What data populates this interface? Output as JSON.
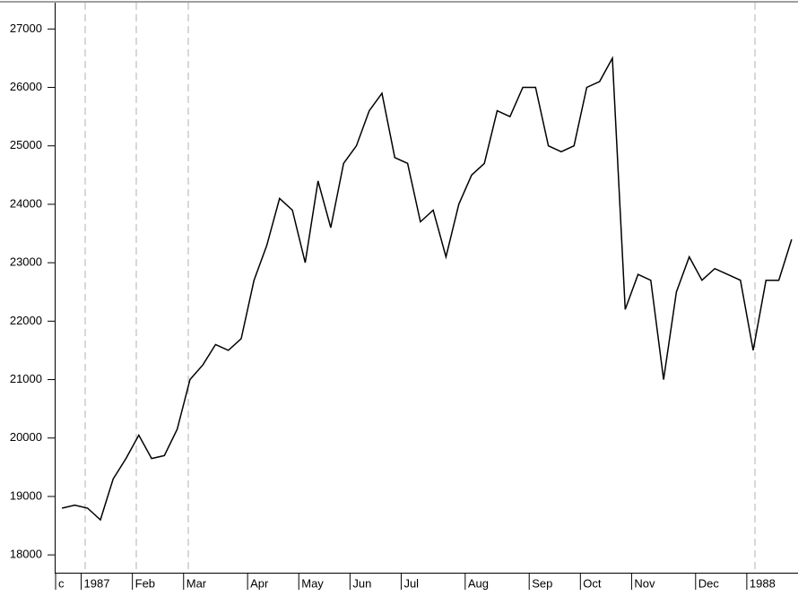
{
  "chart_data": {
    "type": "line",
    "color": "#000000",
    "categories": [
      "c",
      null,
      "1987",
      null,
      null,
      null,
      "Feb",
      null,
      null,
      null,
      "Mar",
      null,
      null,
      null,
      null,
      "Apr",
      null,
      null,
      null,
      "May",
      null,
      null,
      null,
      "Jun",
      null,
      null,
      null,
      "Jul",
      null,
      null,
      null,
      null,
      "Aug",
      null,
      null,
      null,
      null,
      "Sep",
      null,
      null,
      null,
      "Oct",
      null,
      null,
      null,
      "Nov",
      null,
      null,
      null,
      null,
      "Dec",
      null,
      null,
      null,
      "1988",
      null,
      null,
      null
    ],
    "values": [
      18800,
      18850,
      18800,
      18600,
      19300,
      19650,
      20050,
      19650,
      19700,
      20150,
      21000,
      21250,
      21600,
      21500,
      21700,
      22700,
      23300,
      24100,
      23900,
      23000,
      24400,
      23600,
      24700,
      25000,
      25600,
      25900,
      24800,
      24700,
      23700,
      23900,
      23100,
      24000,
      24500,
      24700,
      25600,
      25500,
      26000,
      26000,
      25000,
      24900,
      25000,
      26000,
      26100,
      26500,
      22200,
      22800,
      22700,
      21000,
      22500,
      23100,
      22700,
      22900,
      22800,
      22700,
      21500,
      22700,
      22700,
      23400
    ],
    "ylim": [
      17680,
      27450
    ],
    "yticks": [
      18000,
      19000,
      20000,
      21000,
      22000,
      23000,
      24000,
      25000,
      26000,
      27000
    ],
    "grid": false
  }
}
